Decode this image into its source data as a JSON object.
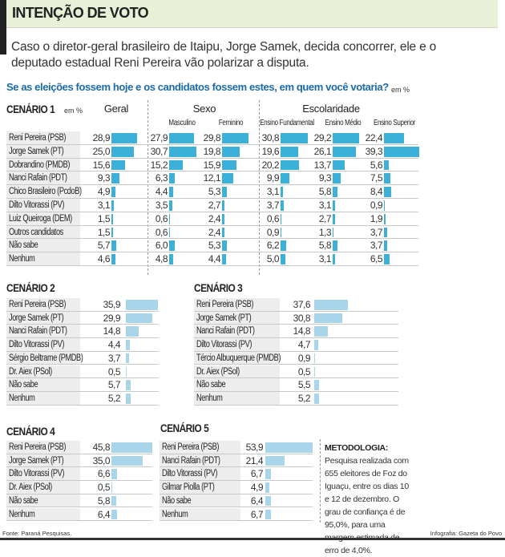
{
  "header": {
    "title": "INTENÇÃO DE VOTO",
    "intro_line1": "Caso o diretor-geral brasileiro de Itaipu, Jorge Samek, decida concorrer, ele e o",
    "intro_line2": "deputado estadual Reni Pereira vão polarizar a disputa.",
    "question": "Se as eleições fossem hoje e os candidatos fossem estes, em quem você votaria?",
    "unit": "em %"
  },
  "colors": {
    "bar_scenario1": "#3bb0d8",
    "bar_other": "#a8d5ea",
    "header_bg": "#e8f0d8",
    "question": "#1a6aa8"
  },
  "chart_data": [
    {
      "type": "table",
      "title": "CENÁRIO 1",
      "unit": "em %",
      "groups": {
        "geral": "Geral",
        "sexo": "Sexo",
        "escolaridade": "Escolaridade"
      },
      "columns": [
        "Geral",
        "Masculino",
        "Feminino",
        "Ensino Fundamental",
        "Ensino Médio",
        "Ensino Superior"
      ],
      "rows": [
        {
          "label": "Reni Pereira (PSB)",
          "values": [
            "28,9",
            "27,9",
            "29,8",
            "30,8",
            "29,2",
            "22,4"
          ]
        },
        {
          "label": "Jorge Samek (PT)",
          "values": [
            "25,0",
            "30,7",
            "19,8",
            "19,6",
            "26,1",
            "39,3"
          ]
        },
        {
          "label": "Dobrandino (PMDB)",
          "values": [
            "15,6",
            "15,2",
            "15,9",
            "20,2",
            "13,7",
            "5,6"
          ]
        },
        {
          "label": "Nanci Rafain (PDT)",
          "values": [
            "9,3",
            "6,3",
            "12,1",
            "9,9",
            "9,3",
            "7,5"
          ]
        },
        {
          "label": "Chico Brasileiro (PcdoB)",
          "values": [
            "4,9",
            "4,4",
            "5,3",
            "3,1",
            "5,8",
            "8,4"
          ]
        },
        {
          "label": "Dilto Vitorassi (PV)",
          "values": [
            "3,1",
            "3,5",
            "2,7",
            "3,7",
            "3,1",
            "0,9"
          ]
        },
        {
          "label": "Luiz Queiroga (DEM)",
          "values": [
            "1,5",
            "0,6",
            "2,4",
            "0,6",
            "2,7",
            "1,9"
          ]
        },
        {
          "label": "Outros candidatos",
          "values": [
            "1,5",
            "0,6",
            "2,4",
            "0,9",
            "1,3",
            "3,7"
          ]
        },
        {
          "label": "Não sabe",
          "values": [
            "5,7",
            "6,0",
            "5,3",
            "6,2",
            "5,8",
            "3,7"
          ]
        },
        {
          "label": "Nenhum",
          "values": [
            "4,6",
            "4,8",
            "4,4",
            "5,0",
            "3,1",
            "6,5"
          ]
        }
      ]
    },
    {
      "type": "bar",
      "title": "CENÁRIO 2",
      "rows": [
        {
          "label": "Reni Pereira (PSB)",
          "value": "35,9"
        },
        {
          "label": "Jorge Samek (PT)",
          "value": "29,9"
        },
        {
          "label": "Nanci Rafain (PDT)",
          "value": "14,8"
        },
        {
          "label": "Dilto Vitorassi (PV)",
          "value": "4,4"
        },
        {
          "label": "Sérgio Beltrame (PMDB)",
          "value": "3,7"
        },
        {
          "label": "Dr. Aiex (PSol)",
          "value": "0,5"
        },
        {
          "label": "Não sabe",
          "value": "5,7"
        },
        {
          "label": "Nenhum",
          "value": "5,2"
        }
      ]
    },
    {
      "type": "bar",
      "title": "CENÁRIO 3",
      "rows": [
        {
          "label": "Reni Pereira (PSB)",
          "value": "37,6"
        },
        {
          "label": "Jorge Samek (PT)",
          "value": "30,8"
        },
        {
          "label": "Nanci Rafain (PDT)",
          "value": "14,8"
        },
        {
          "label": "Dilto Vitorassi (PV)",
          "value": "4,7"
        },
        {
          "label": "Tércio Albuquerque (PMDB)",
          "value": "0,9"
        },
        {
          "label": "Dr. Aiex (PSol)",
          "value": "0,5"
        },
        {
          "label": "Não sabe",
          "value": "5,5"
        },
        {
          "label": "Nenhum",
          "value": "5,2"
        }
      ]
    },
    {
      "type": "bar",
      "title": "CENÁRIO 4",
      "rows": [
        {
          "label": "Reni Pereira (PSB)",
          "value": "45,8"
        },
        {
          "label": "Jorge Samek (PT)",
          "value": "35,0"
        },
        {
          "label": "Dilto Vitorassi (PV)",
          "value": "6,6"
        },
        {
          "label": "Dr. Aiex (PSol)",
          "value": "0,5"
        },
        {
          "label": "Não sabe",
          "value": "5,8"
        },
        {
          "label": "Nenhum",
          "value": "6,4"
        }
      ]
    },
    {
      "type": "bar",
      "title": "CENÁRIO 5",
      "rows": [
        {
          "label": "Reni Pereira (PSB)",
          "value": "53,9"
        },
        {
          "label": "Nanci Rafain (PDT)",
          "value": "21,4"
        },
        {
          "label": "Dilto Vitorassi (PV)",
          "value": "6,7"
        },
        {
          "label": "Gilmar Piolla (PT)",
          "value": "4,9"
        },
        {
          "label": "Não sabe",
          "value": "6,4"
        },
        {
          "label": "Nenhum",
          "value": "6,7"
        }
      ]
    }
  ],
  "methodology": {
    "label": "METODOLOGIA:",
    "text": " Pesquisa realizada com 655 eleitores de Foz do Iguaçu, entre os dias 10 e 12 de dezembro. O grau de confiança é de 95,0%, para uma margem estimada de erro de 4,0%."
  },
  "footer": {
    "source": "Fonte: Paraná Pesquisas.",
    "credit": "Infografia: Gazeta do Povo"
  }
}
